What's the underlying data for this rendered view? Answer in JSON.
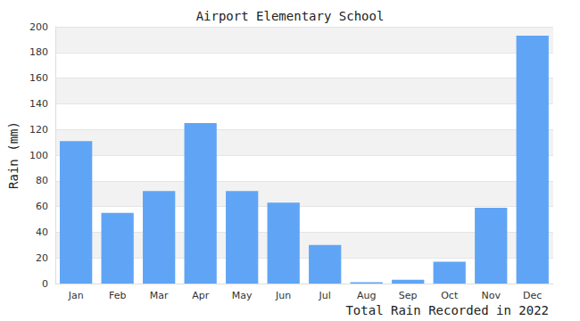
{
  "chart_data": {
    "type": "bar",
    "title": "Airport Elementary School",
    "xlabel": "Total Rain Recorded in 2022",
    "ylabel": "Rain (mm)",
    "categories": [
      "Jan",
      "Feb",
      "Mar",
      "Apr",
      "May",
      "Jun",
      "Jul",
      "Aug",
      "Sep",
      "Oct",
      "Nov",
      "Dec"
    ],
    "values": [
      111,
      55,
      72,
      125,
      72,
      63,
      30,
      1,
      3,
      17,
      59,
      193
    ],
    "color": "#60a5f5",
    "ylim": [
      0,
      200
    ],
    "yticks": [
      0,
      20,
      40,
      60,
      80,
      100,
      120,
      140,
      160,
      180,
      200
    ],
    "grid": true
  }
}
